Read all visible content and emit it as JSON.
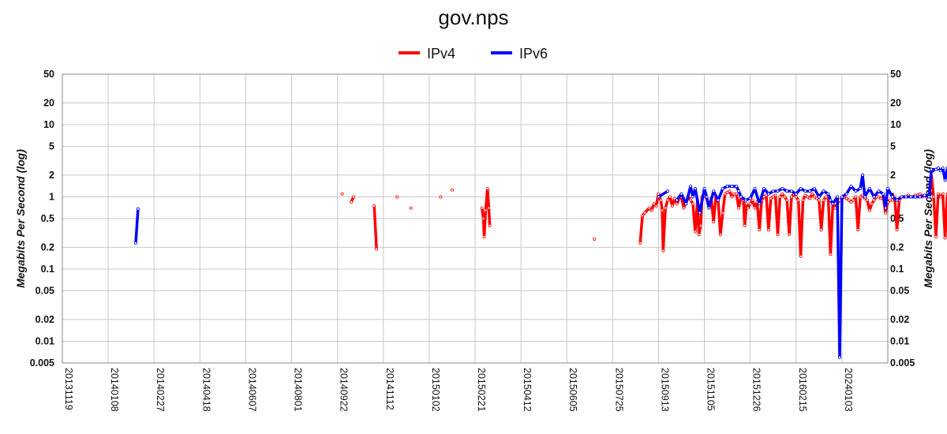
{
  "chart_data": {
    "type": "line",
    "title": "gov.nps",
    "ylabel": "Megabits Per Second (log)",
    "xlabel": "",
    "y_scale": "log",
    "ylim": [
      0.005,
      50
    ],
    "y_ticks": [
      "50",
      "20",
      "10",
      "5",
      "2",
      "1",
      "0.5",
      "0.2",
      "0.1",
      "0.05",
      "0.02",
      "0.01",
      "0.005"
    ],
    "x_tick_labels": [
      "20131119",
      "20140108",
      "20140227",
      "20140418",
      "20140607",
      "20140801",
      "20140922",
      "20141112",
      "20150102",
      "20150221",
      "20150412",
      "20150605",
      "20150725",
      "20150913",
      "20151105",
      "20151226",
      "20160215",
      "20240103"
    ],
    "grid": true,
    "legend_position": "top-center",
    "legend": [
      "IPv4",
      "IPv6"
    ],
    "colors": {
      "IPv4": "#ff0000",
      "IPv6": "#0000ff"
    },
    "series": [
      {
        "name": "IPv4",
        "color": "#ff0000",
        "points": [
          [
            6.1,
            1.1
          ],
          [
            6.3,
            0.85
          ],
          [
            6.35,
            1.0
          ],
          [
            6.8,
            0.75
          ],
          [
            6.85,
            0.19
          ],
          [
            7.3,
            1.0
          ],
          [
            7.6,
            0.7
          ],
          [
            8.25,
            1.0
          ],
          [
            8.5,
            1.25
          ],
          [
            9.15,
            0.7
          ],
          [
            9.18,
            0.5
          ],
          [
            9.2,
            0.28
          ],
          [
            9.23,
            0.65
          ],
          [
            9.27,
            1.3
          ],
          [
            9.3,
            0.7
          ],
          [
            9.32,
            0.4
          ],
          [
            11.6,
            0.26
          ],
          [
            12.6,
            0.23
          ],
          [
            12.65,
            0.55
          ],
          [
            12.7,
            0.6
          ],
          [
            12.8,
            0.7
          ],
          [
            12.85,
            0.65
          ],
          [
            12.9,
            0.8
          ],
          [
            12.95,
            0.75
          ],
          [
            13.0,
            1.1
          ],
          [
            13.05,
            0.9
          ],
          [
            13.08,
            0.65
          ],
          [
            13.1,
            0.18
          ],
          [
            13.15,
            0.7
          ],
          [
            13.2,
            0.9
          ],
          [
            13.25,
            1.0
          ],
          [
            13.3,
            0.75
          ],
          [
            13.35,
            0.95
          ],
          [
            13.4,
            0.8
          ],
          [
            13.45,
            0.95
          ],
          [
            13.5,
            1.0
          ],
          [
            13.55,
            0.7
          ],
          [
            13.6,
            0.85
          ],
          [
            13.65,
            1.0
          ],
          [
            13.7,
            0.9
          ],
          [
            13.75,
            0.8
          ],
          [
            13.8,
            0.33
          ],
          [
            13.85,
            0.9
          ],
          [
            13.88,
            0.3
          ],
          [
            13.92,
            0.4
          ],
          [
            13.95,
            1.0
          ],
          [
            14.0,
            1.05
          ],
          [
            14.05,
            0.95
          ],
          [
            14.1,
            0.7
          ],
          [
            14.15,
            0.95
          ],
          [
            14.2,
            0.45
          ],
          [
            14.25,
            1.0
          ],
          [
            14.3,
            0.9
          ],
          [
            14.35,
            0.3
          ],
          [
            14.4,
            0.6
          ],
          [
            14.45,
            1.1
          ],
          [
            14.5,
            1.15
          ],
          [
            14.55,
            1.2
          ],
          [
            14.6,
            1.0
          ],
          [
            14.65,
            1.1
          ],
          [
            14.7,
            1.1
          ],
          [
            14.75,
            0.7
          ],
          [
            14.8,
            1.0
          ],
          [
            14.85,
            0.9
          ],
          [
            14.88,
            0.4
          ],
          [
            14.92,
            0.8
          ],
          [
            14.95,
            0.7
          ],
          [
            15.0,
            0.8
          ],
          [
            15.05,
            0.9
          ],
          [
            15.1,
            0.7
          ],
          [
            15.15,
            0.85
          ],
          [
            15.2,
            0.35
          ],
          [
            15.25,
            0.9
          ],
          [
            15.3,
            1.0
          ],
          [
            15.35,
            1.05
          ],
          [
            15.4,
            0.35
          ],
          [
            15.45,
            0.95
          ],
          [
            15.5,
            1.0
          ],
          [
            15.55,
            1.05
          ],
          [
            15.6,
            0.3
          ],
          [
            15.65,
            1.0
          ],
          [
            15.7,
            1.1
          ],
          [
            15.75,
            1.0
          ],
          [
            15.8,
            0.9
          ],
          [
            15.85,
            0.3
          ],
          [
            15.9,
            1.0
          ],
          [
            15.95,
            1.1
          ],
          [
            16.0,
            1.0
          ],
          [
            16.05,
            0.9
          ],
          [
            16.1,
            0.15
          ],
          [
            16.15,
            0.9
          ],
          [
            16.2,
            1.05
          ],
          [
            16.25,
            1.0
          ],
          [
            16.3,
            0.95
          ],
          [
            16.35,
            1.1
          ],
          [
            16.4,
            1.0
          ],
          [
            16.45,
            0.95
          ],
          [
            16.5,
            0.9
          ],
          [
            16.55,
            0.35
          ],
          [
            16.6,
            0.9
          ],
          [
            16.65,
            1.0
          ],
          [
            16.7,
            1.0
          ],
          [
            16.75,
            0.16
          ],
          [
            16.8,
            0.8
          ],
          [
            16.85,
            0.7
          ],
          [
            16.9,
            0.8
          ],
          [
            16.95,
            0.9
          ],
          [
            17.0,
            0.95
          ],
          [
            17.05,
            1.0
          ],
          [
            17.1,
            0.95
          ],
          [
            17.15,
            0.9
          ],
          [
            17.2,
            0.85
          ],
          [
            17.25,
            0.9
          ],
          [
            17.3,
            1.0
          ],
          [
            17.35,
            0.35
          ],
          [
            17.4,
            1.0
          ],
          [
            17.45,
            1.05
          ],
          [
            17.5,
            0.95
          ],
          [
            17.55,
            0.9
          ],
          [
            17.6,
            0.65
          ],
          [
            17.65,
            0.8
          ],
          [
            17.7,
            0.9
          ],
          [
            17.75,
            1.0
          ],
          [
            17.8,
            1.0
          ],
          [
            17.85,
            0.95
          ],
          [
            17.9,
            1.0
          ],
          [
            17.95,
            0.6
          ],
          [
            18.0,
            0.85
          ],
          [
            18.05,
            0.9
          ],
          [
            18.1,
            0.9
          ],
          [
            18.15,
            1.0
          ],
          [
            18.2,
            0.35
          ],
          [
            18.25,
            0.9
          ],
          [
            18.3,
            1.0
          ],
          [
            18.35,
            1.0
          ],
          [
            18.4,
            1.0
          ],
          [
            18.45,
            1.05
          ],
          [
            18.5,
            1.0
          ],
          [
            18.55,
            1.0
          ],
          [
            18.6,
            1.05
          ],
          [
            18.65,
            1.05
          ],
          [
            18.7,
            1.1
          ],
          [
            18.75,
            1.0
          ],
          [
            18.8,
            1.05
          ],
          [
            18.85,
            1.0
          ],
          [
            18.9,
            1.05
          ],
          [
            18.95,
            2.0
          ],
          [
            19.0,
            1.0
          ],
          [
            19.05,
            0.28
          ],
          [
            19.1,
            1.1
          ],
          [
            19.15,
            1.0
          ],
          [
            19.2,
            1.1
          ],
          [
            19.25,
            0.27
          ],
          [
            19.3,
            1.1
          ],
          [
            19.35,
            0.25
          ],
          [
            19.4,
            1.0
          ],
          [
            19.45,
            1.2
          ],
          [
            19.5,
            1.0
          ],
          [
            19.55,
            1.1
          ],
          [
            19.6,
            5.0
          ],
          [
            19.65,
            6.0
          ],
          [
            19.7,
            5.5
          ],
          [
            19.75,
            6.5
          ],
          [
            19.8,
            7.0
          ],
          [
            19.85,
            6.0
          ],
          [
            19.9,
            5.5
          ],
          [
            19.95,
            6.5
          ],
          [
            20.0,
            3.5
          ],
          [
            20.05,
            6.0
          ],
          [
            20.1,
            8.0
          ],
          [
            20.15,
            7.0
          ],
          [
            20.2,
            8.5
          ],
          [
            20.25,
            9.5
          ],
          [
            20.3,
            8.0
          ],
          [
            20.35,
            7.5
          ],
          [
            20.4,
            7.0
          ],
          [
            20.45,
            6.5
          ],
          [
            20.5,
            6.0
          ]
        ]
      },
      {
        "name": "IPv6",
        "color": "#0000ff",
        "points": [
          [
            1.6,
            0.23
          ],
          [
            1.65,
            0.68
          ],
          [
            13.0,
            1.0
          ],
          [
            13.2,
            1.2
          ],
          [
            13.4,
            0.9
          ],
          [
            13.5,
            1.1
          ],
          [
            13.6,
            0.8
          ],
          [
            13.7,
            1.4
          ],
          [
            13.75,
            1.0
          ],
          [
            13.8,
            1.3
          ],
          [
            13.9,
            0.6
          ],
          [
            14.0,
            1.3
          ],
          [
            14.05,
            1.0
          ],
          [
            14.1,
            0.7
          ],
          [
            14.2,
            1.2
          ],
          [
            14.3,
            0.9
          ],
          [
            14.4,
            1.3
          ],
          [
            14.5,
            1.4
          ],
          [
            14.6,
            1.4
          ],
          [
            14.7,
            1.4
          ],
          [
            14.75,
            1.2
          ],
          [
            14.8,
            1.0
          ],
          [
            14.9,
            0.9
          ],
          [
            15.0,
            0.95
          ],
          [
            15.1,
            1.3
          ],
          [
            15.2,
            0.8
          ],
          [
            15.3,
            1.3
          ],
          [
            15.4,
            1.1
          ],
          [
            15.5,
            1.2
          ],
          [
            15.6,
            1.2
          ],
          [
            15.7,
            1.3
          ],
          [
            15.8,
            1.2
          ],
          [
            15.9,
            1.2
          ],
          [
            16.0,
            1.1
          ],
          [
            16.1,
            1.3
          ],
          [
            16.2,
            1.2
          ],
          [
            16.3,
            1.2
          ],
          [
            16.4,
            1.3
          ],
          [
            16.5,
            1.0
          ],
          [
            16.6,
            1.2
          ],
          [
            16.7,
            1.1
          ],
          [
            16.75,
            0.9
          ],
          [
            16.8,
            0.8
          ],
          [
            16.9,
            1.0
          ],
          [
            16.95,
            0.006
          ],
          [
            17.0,
            1.0
          ],
          [
            17.1,
            1.1
          ],
          [
            17.2,
            1.4
          ],
          [
            17.3,
            1.2
          ],
          [
            17.4,
            1.3
          ],
          [
            17.45,
            2.0
          ],
          [
            17.5,
            1.0
          ],
          [
            17.6,
            1.3
          ],
          [
            17.7,
            1.0
          ],
          [
            17.8,
            1.2
          ],
          [
            17.9,
            1.1
          ],
          [
            17.95,
            0.7
          ],
          [
            18.0,
            1.3
          ],
          [
            18.1,
            1.0
          ],
          [
            18.2,
            0.9
          ],
          [
            18.3,
            1.0
          ],
          [
            18.4,
            1.0
          ],
          [
            18.5,
            1.0
          ],
          [
            18.6,
            1.0
          ],
          [
            18.7,
            1.0
          ],
          [
            18.8,
            1.05
          ],
          [
            18.9,
            1.0
          ],
          [
            18.95,
            2.4
          ],
          [
            19.05,
            2.4
          ],
          [
            19.1,
            2.5
          ],
          [
            19.15,
            2.3
          ],
          [
            19.2,
            2.5
          ],
          [
            19.25,
            1.7
          ],
          [
            19.3,
            2.5
          ],
          [
            19.35,
            2.4
          ],
          [
            19.4,
            2.5
          ],
          [
            19.45,
            1.2
          ],
          [
            19.5,
            1.1
          ],
          [
            19.6,
            12.0
          ],
          [
            19.65,
            15.0
          ],
          [
            19.7,
            13.0
          ],
          [
            19.75,
            18.0
          ],
          [
            19.8,
            14.0
          ],
          [
            19.85,
            17.0
          ],
          [
            19.9,
            16.0
          ],
          [
            19.95,
            18.0
          ],
          [
            20.0,
            8.0
          ],
          [
            20.05,
            15.0
          ],
          [
            20.1,
            19.0
          ],
          [
            20.15,
            17.0
          ],
          [
            20.2,
            20.0
          ],
          [
            20.25,
            21.0
          ],
          [
            20.3,
            19.0
          ],
          [
            20.35,
            20.0
          ],
          [
            20.4,
            19.0
          ],
          [
            20.45,
            17.0
          ],
          [
            20.5,
            16.0
          ]
        ]
      }
    ]
  }
}
